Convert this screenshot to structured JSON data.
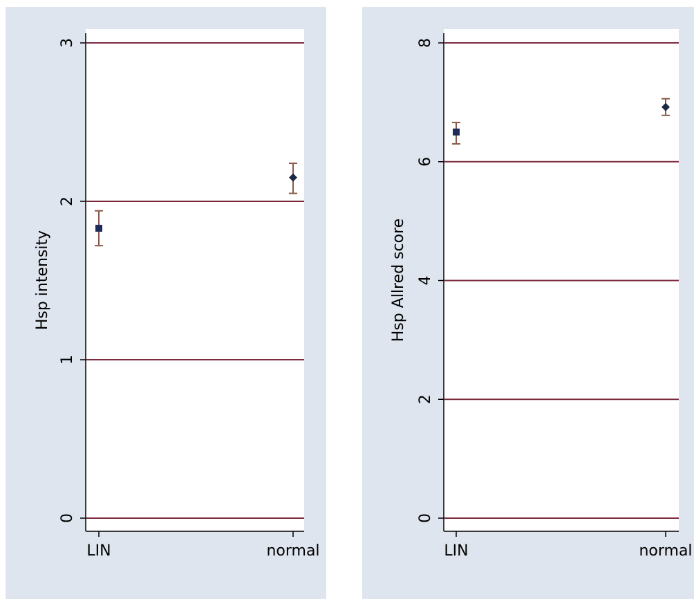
{
  "colors": {
    "panel_background": "#dfe5ef",
    "plot_background": "#ffffff",
    "gridline": "#7b2a3e",
    "axis": "#000000",
    "error_bar": "#8a5a4a",
    "marker_lin": "#1d2a5a",
    "marker_normal": "#1b2a44"
  },
  "chart_data": [
    {
      "type": "scatter",
      "title": "",
      "xlabel": "",
      "ylabel": "Hsp intensity",
      "categories": [
        "LIN",
        "normal"
      ],
      "ylim": [
        0,
        3
      ],
      "yticks": [
        0,
        1,
        2,
        3
      ],
      "ytick_labels": [
        "0",
        "1",
        "2",
        "3"
      ],
      "grid": true,
      "legend": "none",
      "points": [
        {
          "category": "LIN",
          "mean": 1.83,
          "lower": 1.72,
          "upper": 1.94,
          "marker": "square"
        },
        {
          "category": "normal",
          "mean": 2.15,
          "lower": 2.05,
          "upper": 2.24,
          "marker": "diamond"
        }
      ]
    },
    {
      "type": "scatter",
      "title": "",
      "xlabel": "",
      "ylabel": "Hsp Allred score",
      "categories": [
        "LIN",
        "normal"
      ],
      "ylim": [
        0,
        8
      ],
      "yticks": [
        0,
        2,
        4,
        6,
        8
      ],
      "ytick_labels": [
        "0",
        "2",
        "4",
        "6",
        "8"
      ],
      "grid": true,
      "legend": "none",
      "points": [
        {
          "category": "LIN",
          "mean": 6.5,
          "lower": 6.3,
          "upper": 6.66,
          "marker": "square"
        },
        {
          "category": "normal",
          "mean": 6.92,
          "lower": 6.78,
          "upper": 7.06,
          "marker": "diamond"
        }
      ]
    }
  ]
}
